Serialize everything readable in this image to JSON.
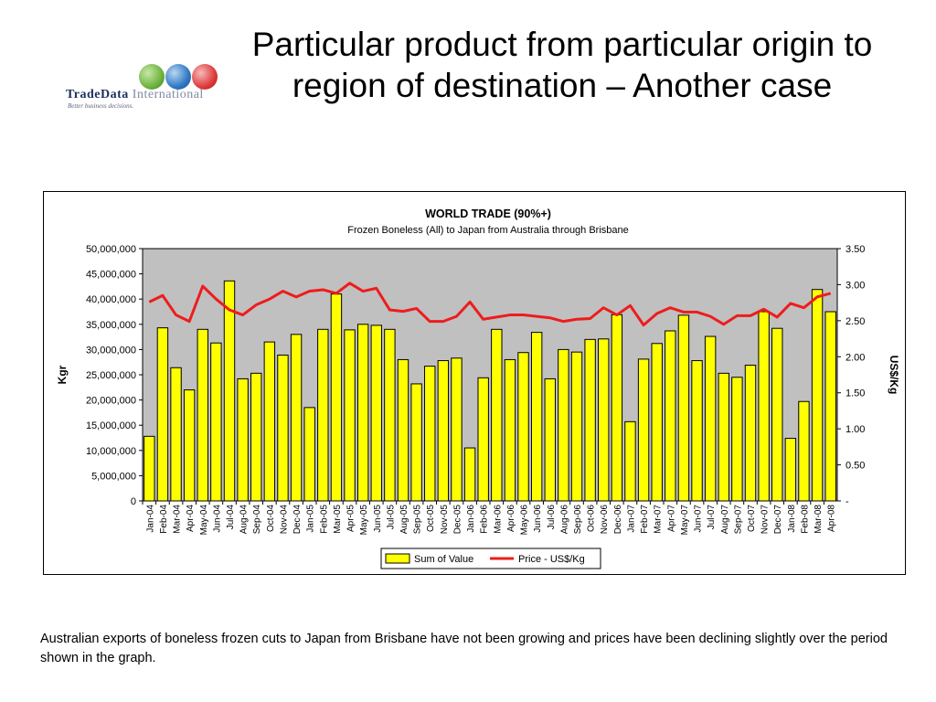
{
  "slide": {
    "title": "Particular product from particular origin to region of destination – Another case",
    "caption": "Australian exports of boneless frozen cuts to Japan from Brisbane have not been growing and prices have been declining slightly over the period shown in the graph."
  },
  "logo": {
    "name_part1": "TradeData",
    "name_part2": " International",
    "tagline": "Better business decisions.",
    "globe_colors": [
      "#6db33f",
      "#2f79c4",
      "#e03a3a"
    ]
  },
  "colors": {
    "bar_fill": "#ffff00",
    "bar_stroke": "#000000",
    "line": "#ee1c1c",
    "plot_bg": "#c0c0c0"
  },
  "chart_data": {
    "type": "bar",
    "combo": "bar + line on secondary axis",
    "title": "WORLD TRADE (90%+)",
    "subtitle": "Frozen Boneless (All) to Japan from Australia through Brisbane",
    "ylabel": "Kgr",
    "y2label": "US$/Kg",
    "ylim": [
      0,
      50000000
    ],
    "y2lim": [
      0,
      3.5
    ],
    "yticks": [
      "0",
      "5,000,000",
      "10,000,000",
      "15,000,000",
      "20,000,000",
      "25,000,000",
      "30,000,000",
      "35,000,000",
      "40,000,000",
      "45,000,000",
      "50,000,000"
    ],
    "y2ticks": [
      "-",
      "0.50",
      "1.00",
      "1.50",
      "2.00",
      "2.50",
      "3.00",
      "3.50"
    ],
    "grid": false,
    "legend_position": "bottom",
    "categories": [
      "Jan-04",
      "Feb-04",
      "Mar-04",
      "Apr-04",
      "May-04",
      "Jun-04",
      "Jul-04",
      "Aug-04",
      "Sep-04",
      "Oct-04",
      "Nov-04",
      "Dec-04",
      "Jan-05",
      "Feb-05",
      "Mar-05",
      "Apr-05",
      "May-05",
      "Jun-05",
      "Jul-05",
      "Aug-05",
      "Sep-05",
      "Oct-05",
      "Nov-05",
      "Dec-05",
      "Jan-06",
      "Feb-06",
      "Mar-06",
      "Apr-06",
      "May-06",
      "Jun-06",
      "Jul-06",
      "Aug-06",
      "Sep-06",
      "Oct-06",
      "Nov-06",
      "Dec-06",
      "Jan-07",
      "Feb-07",
      "Mar-07",
      "Apr-07",
      "May-07",
      "Jun-07",
      "Jul-07",
      "Aug-07",
      "Sep-07",
      "Oct-07",
      "Nov-07",
      "Dec-07",
      "Jan-08",
      "Feb-08",
      "Mar-08",
      "Apr-08"
    ],
    "series": [
      {
        "name": "Sum of Value",
        "type": "bar",
        "axis": "primary",
        "values": [
          12800000,
          34300000,
          26400000,
          22000000,
          34000000,
          31300000,
          43600000,
          24200000,
          25300000,
          31500000,
          28900000,
          33000000,
          18500000,
          34000000,
          41000000,
          33900000,
          35000000,
          34800000,
          34000000,
          28000000,
          23200000,
          26700000,
          27800000,
          28300000,
          10500000,
          24400000,
          34000000,
          28000000,
          29400000,
          33400000,
          24200000,
          30000000,
          29500000,
          32000000,
          32100000,
          36900000,
          15700000,
          28100000,
          31200000,
          33700000,
          36800000,
          27800000,
          32600000,
          25300000,
          24500000,
          26900000,
          37500000,
          34200000,
          12400000,
          19700000,
          41900000,
          37500000
        ]
      },
      {
        "name": "Price - US$/Kg",
        "type": "line",
        "axis": "secondary",
        "values": [
          2.76,
          2.85,
          2.58,
          2.49,
          2.98,
          2.8,
          2.65,
          2.58,
          2.72,
          2.8,
          2.91,
          2.83,
          2.91,
          2.93,
          2.88,
          3.02,
          2.91,
          2.95,
          2.65,
          2.63,
          2.67,
          2.49,
          2.49,
          2.56,
          2.76,
          2.52,
          2.55,
          2.58,
          2.58,
          2.56,
          2.54,
          2.49,
          2.52,
          2.53,
          2.68,
          2.58,
          2.71,
          2.44,
          2.6,
          2.68,
          2.62,
          2.62,
          2.56,
          2.45,
          2.57,
          2.57,
          2.66,
          2.55,
          2.74,
          2.68,
          2.83,
          2.88
        ]
      }
    ]
  }
}
